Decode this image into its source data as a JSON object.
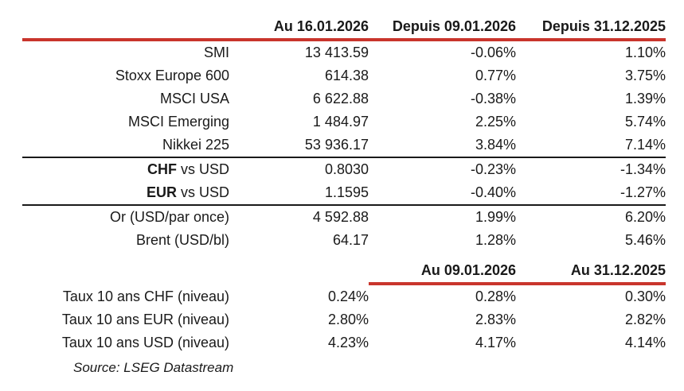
{
  "colors": {
    "background": "#ffffff",
    "text": "#1a1a1a",
    "header_rule_red": "#c9352c",
    "section_divider_black": "#1a1a1a"
  },
  "main_table": {
    "header": {
      "col1": "Au 16.01.2026",
      "col2": "Depuis 09.01.2026",
      "col3": "Depuis 31.12.2025"
    },
    "sections": [
      {
        "name": "equity-indices",
        "rows": [
          {
            "bold": "",
            "label": "SMI",
            "v": [
              "13 413.59",
              "-0.06%",
              "1.10%"
            ]
          },
          {
            "bold": "",
            "label": "Stoxx Europe 600",
            "v": [
              "614.38",
              "0.77%",
              "3.75%"
            ]
          },
          {
            "bold": "",
            "label": "MSCI USA",
            "v": [
              "6 622.88",
              "-0.38%",
              "1.39%"
            ]
          },
          {
            "bold": "",
            "label": "MSCI Emerging",
            "v": [
              "1 484.97",
              "2.25%",
              "5.74%"
            ]
          },
          {
            "bold": "",
            "label": "Nikkei 225",
            "v": [
              "53 936.17",
              "3.84%",
              "7.14%"
            ]
          }
        ]
      },
      {
        "name": "currencies",
        "rows": [
          {
            "bold": "CHF",
            "label": " vs USD",
            "v": [
              "0.8030",
              "-0.23%",
              "-1.34%"
            ]
          },
          {
            "bold": "EUR",
            "label": " vs USD",
            "v": [
              "1.1595",
              "-0.40%",
              "-1.27%"
            ]
          }
        ]
      },
      {
        "name": "commodities",
        "rows": [
          {
            "bold": "",
            "label": "Or (USD/par once)",
            "v": [
              "4 592.88",
              "1.99%",
              "6.20%"
            ]
          },
          {
            "bold": "",
            "label": "Brent (USD/bl)",
            "v": [
              "64.17",
              "1.28%",
              "5.46%"
            ]
          }
        ]
      }
    ]
  },
  "rates_table": {
    "header": {
      "col2": "Au 09.01.2026",
      "col3": "Au 31.12.2025"
    },
    "rows": [
      {
        "label": "Taux 10 ans CHF (niveau)",
        "v": [
          "0.24%",
          "0.28%",
          "0.30%"
        ]
      },
      {
        "label": "Taux 10 ans EUR (niveau)",
        "v": [
          "2.80%",
          "2.83%",
          "2.82%"
        ]
      },
      {
        "label": "Taux 10 ans USD (niveau)",
        "v": [
          "4.23%",
          "4.17%",
          "4.14%"
        ]
      }
    ]
  },
  "footer": {
    "source": "Source: LSEG Datastream"
  }
}
